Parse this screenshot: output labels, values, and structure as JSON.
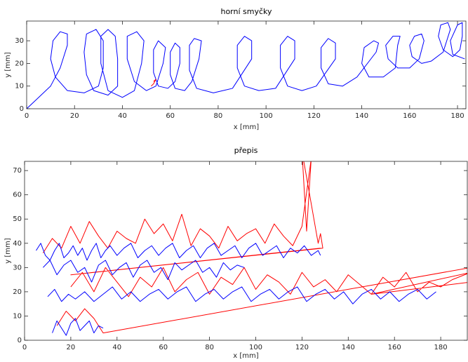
{
  "chart_data": [
    {
      "type": "line",
      "title": "horní smyčky",
      "xlabel": "x [mm]",
      "ylabel": "y [mm]",
      "xlim": [
        0,
        183.5
      ],
      "ylim": [
        0,
        38.7
      ],
      "xticks": [
        0,
        20,
        40,
        60,
        80,
        100,
        120,
        140,
        160,
        180
      ],
      "yticks": [
        0,
        10,
        20,
        30
      ],
      "series": [
        {
          "color": "#0000ff",
          "x": [
            0,
            4,
            10,
            14,
            17,
            17,
            14,
            11,
            10,
            12,
            17,
            24,
            30,
            32,
            32,
            29,
            25,
            24,
            25,
            28,
            34,
            38,
            38,
            37,
            34,
            31,
            31,
            34,
            40,
            45,
            48,
            49,
            46,
            42,
            42,
            45,
            50,
            54,
            57,
            58,
            55,
            53,
            53,
            55,
            59,
            62,
            64,
            64,
            62,
            60,
            60,
            62,
            66,
            69,
            72,
            73,
            70,
            68,
            68,
            71,
            78,
            86,
            94,
            94,
            91,
            88,
            88,
            91,
            97,
            104,
            112,
            112,
            109,
            106,
            106,
            109,
            115,
            121,
            129,
            129,
            126,
            123,
            123,
            126,
            132,
            138,
            146,
            147,
            145,
            141,
            140,
            143,
            149,
            154,
            155,
            156,
            153,
            150,
            151,
            155,
            160,
            164,
            166,
            165,
            162,
            160,
            161,
            165,
            169,
            174,
            177,
            176,
            173,
            172,
            174,
            178,
            181,
            182,
            182,
            180,
            177,
            178,
            183
          ],
          "y": [
            0,
            4,
            10,
            18,
            28,
            33,
            34,
            30,
            22,
            14,
            8,
            7,
            10,
            18,
            30,
            35,
            33,
            25,
            15,
            8,
            6,
            10,
            22,
            32,
            35,
            32,
            20,
            8,
            5,
            8,
            20,
            30,
            34,
            32,
            22,
            12,
            8,
            10,
            20,
            27,
            30,
            26,
            16,
            10,
            9,
            12,
            20,
            27,
            29,
            25,
            15,
            9,
            8,
            12,
            22,
            30,
            31,
            28,
            17,
            9,
            7,
            9,
            22,
            30,
            32,
            28,
            18,
            10,
            8,
            9,
            22,
            30,
            32,
            28,
            18,
            10,
            8,
            10,
            22,
            29,
            31,
            27,
            18,
            11,
            10,
            14,
            25,
            29,
            30,
            27,
            20,
            14,
            14,
            18,
            28,
            32,
            32,
            28,
            22,
            18,
            18,
            22,
            30,
            33,
            32,
            28,
            23,
            20,
            21,
            25,
            35,
            38,
            37,
            32,
            26,
            23,
            26,
            32,
            38,
            37,
            30,
            24,
            22
          ]
        },
        {
          "color": "#ff0000",
          "x": [
            52,
            53,
            54,
            53
          ],
          "y": [
            10,
            11,
            13,
            12
          ]
        }
      ]
    },
    {
      "type": "line",
      "title": "přepis",
      "xlabel": "x [mm]",
      "ylabel": "y [mm]",
      "xlim": [
        0,
        191.5
      ],
      "ylim": [
        0,
        73.8
      ],
      "xticks": [
        0,
        20,
        40,
        60,
        80,
        100,
        120,
        140,
        160,
        180
      ],
      "yticks": [
        0,
        10,
        20,
        30,
        40,
        50,
        60,
        70
      ],
      "series": [
        {
          "color": "#ff0000",
          "x": [
            8,
            12,
            16,
            20,
            24,
            28,
            32,
            36,
            40,
            44,
            48,
            52,
            56,
            60,
            64,
            68,
            72,
            76,
            80,
            84,
            88,
            92,
            96,
            100,
            104,
            108,
            112,
            116,
            120,
            124,
            122,
            120,
            127,
            128,
            129,
            20,
            128,
            null,
            20,
            25,
            30,
            35,
            40,
            45,
            50,
            55,
            60,
            65,
            70,
            75,
            80,
            85,
            90,
            95,
            100,
            105,
            110,
            115,
            120,
            125,
            130,
            135,
            140,
            145,
            150,
            155,
            160,
            165,
            170,
            175,
            180,
            185,
            193,
            150,
            193,
            null,
            14,
            18,
            22,
            26,
            30,
            34,
            193
          ],
          "y": [
            36,
            42,
            38,
            47,
            40,
            49,
            43,
            38,
            45,
            42,
            40,
            50,
            44,
            48,
            41,
            52,
            39,
            46,
            43,
            38,
            47,
            41,
            44,
            46,
            40,
            48,
            43,
            39,
            47,
            75,
            45,
            78,
            40,
            44,
            38,
            27,
            38,
            null,
            22,
            28,
            20,
            30,
            24,
            18,
            26,
            22,
            30,
            20,
            25,
            28,
            19,
            26,
            23,
            30,
            21,
            27,
            24,
            19,
            28,
            22,
            25,
            20,
            27,
            23,
            19,
            26,
            22,
            28,
            20,
            24,
            22,
            25,
            28,
            19,
            24,
            null,
            6,
            12,
            8,
            13,
            9,
            3,
            30
          ]
        },
        {
          "color": "#0000ff",
          "x": [
            5,
            7,
            9,
            11,
            13,
            15,
            17,
            19,
            21,
            23,
            25,
            27,
            29,
            31,
            33,
            35,
            37,
            40,
            43,
            46,
            49,
            52,
            55,
            58,
            61,
            64,
            67,
            70,
            73,
            76,
            79,
            82,
            85,
            88,
            91,
            94,
            97,
            100,
            103,
            106,
            109,
            112,
            115,
            118,
            121,
            124,
            127,
            128,
            null,
            8,
            11,
            14,
            17,
            20,
            23,
            26,
            29,
            32,
            35,
            38,
            41,
            44,
            47,
            50,
            53,
            56,
            59,
            62,
            65,
            68,
            71,
            74,
            77,
            80,
            83,
            86,
            89,
            92,
            95,
            null,
            10,
            13,
            16,
            19,
            22,
            26,
            30,
            34,
            38,
            42,
            46,
            50,
            54,
            58,
            62,
            66,
            70,
            74,
            78,
            82,
            86,
            90,
            94,
            98,
            102,
            106,
            110,
            114,
            118,
            122,
            126,
            130,
            134,
            138,
            142,
            146,
            150,
            154,
            158,
            162,
            166,
            170,
            174,
            178,
            null,
            12,
            14,
            16,
            18,
            20,
            22,
            24,
            26,
            28,
            30,
            32,
            34
          ],
          "y": [
            37,
            40,
            35,
            33,
            37,
            40,
            34,
            36,
            39,
            35,
            38,
            33,
            37,
            40,
            34,
            37,
            39,
            35,
            38,
            40,
            34,
            37,
            39,
            35,
            38,
            40,
            34,
            37,
            39,
            34,
            38,
            40,
            35,
            37,
            39,
            34,
            38,
            40,
            35,
            37,
            39,
            34,
            38,
            36,
            39,
            35,
            37,
            35,
            null,
            30,
            33,
            27,
            31,
            33,
            28,
            30,
            24,
            31,
            33,
            27,
            30,
            32,
            26,
            31,
            33,
            28,
            30,
            25,
            32,
            29,
            31,
            33,
            28,
            30,
            26,
            32,
            29,
            31,
            30,
            null,
            18,
            21,
            16,
            19,
            17,
            20,
            16,
            19,
            22,
            17,
            20,
            16,
            19,
            21,
            17,
            20,
            22,
            16,
            19,
            21,
            17,
            20,
            22,
            16,
            19,
            21,
            17,
            20,
            22,
            16,
            19,
            21,
            17,
            20,
            15,
            19,
            21,
            17,
            20,
            16,
            19,
            21,
            17,
            20,
            null,
            3,
            8,
            5,
            2,
            7,
            9,
            4,
            6,
            8,
            3,
            6,
            5
          ]
        }
      ]
    }
  ]
}
